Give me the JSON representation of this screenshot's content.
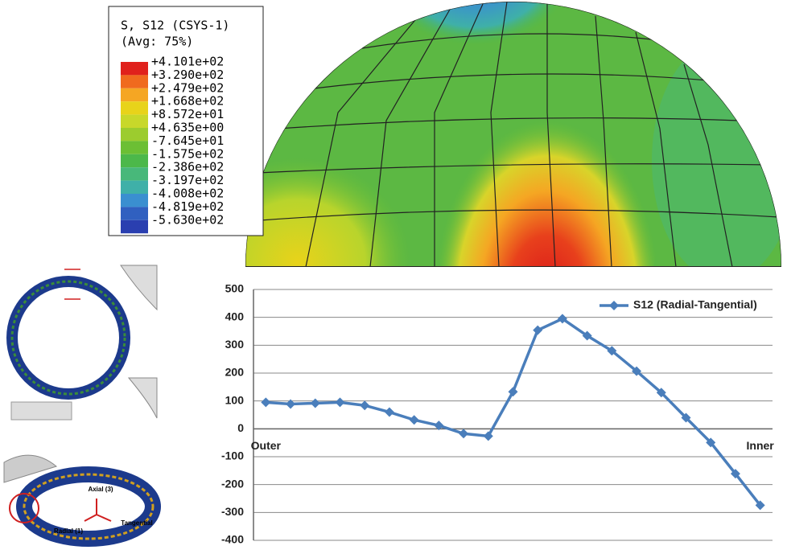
{
  "contour_legend": {
    "title": "S, S12 (CSYS-1)",
    "subtitle": "(Avg: 75%)",
    "labels": [
      "+4.101e+02",
      "+3.290e+02",
      "+2.479e+02",
      "+1.668e+02",
      "+8.572e+01",
      "+4.635e+00",
      "-7.645e+01",
      "-1.575e+02",
      "-2.386e+02",
      "-3.197e+02",
      "-4.008e+02",
      "-4.819e+02",
      "-5.630e+02"
    ],
    "colors": [
      "#e0211c",
      "#f06a1e",
      "#f5a623",
      "#e8d31a",
      "#c8d82a",
      "#9ccc2e",
      "#6cbf34",
      "#4cb84a",
      "#48b87a",
      "#3fb0a8",
      "#3a8fd0",
      "#3060c0",
      "#2a3fb0"
    ]
  },
  "thumbnail_labels": {
    "axial": "Axial (3)",
    "radial": "Radial (1)",
    "tangential": "Tangential"
  },
  "chart_data": {
    "type": "line",
    "categories": [
      "Outer",
      null,
      null,
      null,
      null,
      null,
      null,
      null,
      null,
      null,
      null,
      null,
      null,
      null,
      null,
      null,
      null,
      null,
      null,
      null,
      "Inner"
    ],
    "series": [
      {
        "name": "S12 (Radial-Tangential)",
        "color": "#4a7ebb",
        "values": [
          95,
          89,
          92,
          95,
          84,
          60,
          32,
          12,
          -17,
          -26,
          133,
          354,
          395,
          334,
          280,
          207,
          130,
          40,
          -49,
          -161,
          -274
        ]
      }
    ],
    "ylim": [
      -400,
      500
    ],
    "yticks": [
      -400,
      -300,
      -200,
      -100,
      0,
      100,
      200,
      300,
      400,
      500
    ],
    "grid": true,
    "legend": "top-right"
  }
}
